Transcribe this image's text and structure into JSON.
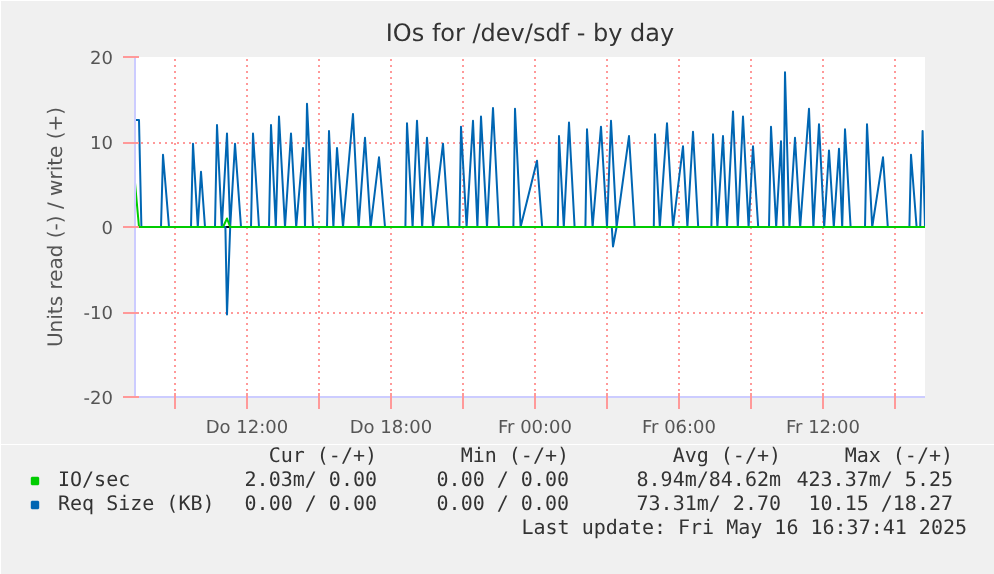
{
  "chart_data": {
    "type": "line",
    "title": "IOs for /dev/sdf - by day",
    "ylabel": "Units read (-) / write (+)",
    "xlim": [
      "2025-05-15T07:20",
      "2025-05-16T16:15"
    ],
    "ylim": [
      -20,
      20
    ],
    "xticks": [
      {
        "value": "2025-05-15T09:00",
        "label": null
      },
      {
        "value": "2025-05-15T12:00",
        "label": "Do 12:00"
      },
      {
        "value": "2025-05-15T15:00",
        "label": null
      },
      {
        "value": "2025-05-15T18:00",
        "label": "Do 18:00"
      },
      {
        "value": "2025-05-15T21:00",
        "label": null
      },
      {
        "value": "2025-05-16T00:00",
        "label": "Fr 00:00"
      },
      {
        "value": "2025-05-16T03:00",
        "label": null
      },
      {
        "value": "2025-05-16T06:00",
        "label": "Fr 06:00"
      },
      {
        "value": "2025-05-16T09:00",
        "label": null
      },
      {
        "value": "2025-05-16T12:00",
        "label": "Fr 12:00"
      },
      {
        "value": "2025-05-16T15:00",
        "label": null
      }
    ],
    "yticks": [
      -20,
      -10,
      0,
      10,
      20
    ],
    "grid": true,
    "legend": "bottom",
    "ref_lines": [
      {
        "axis": "y",
        "value": 0,
        "label": null,
        "color": "#000000"
      }
    ],
    "series": [
      {
        "name": "Req Size (KB)",
        "color": "#0066b3",
        "x": [
          "2025-05-15T07:20",
          "2025-05-15T07:30",
          "2025-05-15T07:36",
          "2025-05-15T08:25",
          "2025-05-15T08:30",
          "2025-05-15T08:45",
          "2025-05-15T09:40",
          "2025-05-15T09:45",
          "2025-05-15T09:57",
          "2025-05-15T10:05",
          "2025-05-15T10:15",
          "2025-05-15T10:40",
          "2025-05-15T10:45",
          "2025-05-15T10:57",
          "2025-05-15T11:10",
          "2025-05-15T11:18",
          "2025-05-15T11:30",
          "2025-05-15T11:45",
          "2025-05-15T12:10",
          "2025-05-15T12:15",
          "2025-05-15T12:30",
          "2025-05-15T12:55",
          "2025-05-15T13:00",
          "2025-05-15T13:12",
          "2025-05-15T13:20",
          "2025-05-15T13:35",
          "2025-05-15T13:50",
          "2025-05-15T14:03",
          "2025-05-15T14:20",
          "2025-05-15T14:25",
          "2025-05-15T14:30",
          "2025-05-15T14:45",
          "2025-05-15T15:20",
          "2025-05-15T15:25",
          "2025-05-15T15:36",
          "2025-05-15T15:45",
          "2025-05-15T16:00",
          "2025-05-15T16:25",
          "2025-05-15T16:39",
          "2025-05-15T16:55",
          "2025-05-15T17:09",
          "2025-05-15T17:30",
          "2025-05-15T17:45",
          "2025-05-15T18:36",
          "2025-05-15T18:40",
          "2025-05-15T18:54",
          "2025-05-15T19:05",
          "2025-05-15T19:18",
          "2025-05-15T19:30",
          "2025-05-15T19:45",
          "2025-05-15T20:10",
          "2025-05-15T20:24",
          "2025-05-15T20:51",
          "2025-05-15T20:55",
          "2025-05-15T21:09",
          "2025-05-15T21:25",
          "2025-05-15T21:36",
          "2025-05-15T21:45",
          "2025-05-15T22:00",
          "2025-05-15T22:15",
          "2025-05-15T22:30",
          "2025-05-15T23:06",
          "2025-05-15T23:10",
          "2025-05-15T23:24",
          "2025-05-16T00:05",
          "2025-05-16T00:18",
          "2025-05-16T00:57",
          "2025-05-16T01:00",
          "2025-05-16T01:12",
          "2025-05-16T01:25",
          "2025-05-16T01:39",
          "2025-05-16T02:06",
          "2025-05-16T02:10",
          "2025-05-16T02:24",
          "2025-05-16T02:45",
          "2025-05-16T03:00",
          "2025-05-16T03:10",
          "2025-05-16T03:24",
          "2025-05-16T03:55",
          "2025-05-16T04:09",
          "2025-05-16T04:57",
          "2025-05-16T05:00",
          "2025-05-16T05:12",
          "2025-05-16T05:30",
          "2025-05-16T05:45",
          "2025-05-16T06:10",
          "2025-05-16T06:21",
          "2025-05-16T06:35",
          "2025-05-16T06:48",
          "2025-05-16T07:21",
          "2025-05-16T07:25",
          "2025-05-16T07:36",
          "2025-05-16T07:50",
          "2025-05-16T08:00",
          "2025-05-16T08:15",
          "2025-05-16T08:27",
          "2025-05-16T08:40",
          "2025-05-16T08:54",
          "2025-05-16T09:05",
          "2025-05-16T09:18",
          "2025-05-16T09:45",
          "2025-05-16T09:50",
          "2025-05-16T10:03",
          "2025-05-16T10:15",
          "2025-05-16T10:21",
          "2025-05-16T10:25",
          "2025-05-16T10:36",
          "2025-05-16T10:50",
          "2025-05-16T11:03",
          "2025-05-16T11:25",
          "2025-05-16T11:36",
          "2025-05-16T11:50",
          "2025-05-16T12:03",
          "2025-05-16T12:15",
          "2025-05-16T12:27",
          "2025-05-16T12:40",
          "2025-05-16T12:48",
          "2025-05-16T12:55",
          "2025-05-16T13:09",
          "2025-05-16T13:45",
          "2025-05-16T13:50",
          "2025-05-16T14:03",
          "2025-05-16T14:30",
          "2025-05-16T14:42",
          "2025-05-16T15:36",
          "2025-05-16T15:40",
          "2025-05-16T15:54",
          "2025-05-16T16:03",
          "2025-05-16T16:09",
          "2025-05-16T16:15"
        ],
        "values": [
          12.6,
          12.6,
          0,
          0,
          8.5,
          0,
          0,
          9.8,
          0,
          6.5,
          0,
          0,
          12,
          0,
          11,
          0,
          9.8,
          0,
          0,
          11,
          0,
          0,
          12,
          0,
          13,
          0,
          11,
          0,
          9.3,
          0,
          14.5,
          0,
          0,
          11.3,
          0,
          9.3,
          0,
          13.3,
          0,
          10.5,
          0,
          8.2,
          0,
          0,
          12.2,
          0,
          12.5,
          0,
          10.5,
          0,
          9.8,
          0,
          0,
          11.8,
          0,
          12.5,
          0,
          13,
          0,
          14,
          0,
          0,
          13.9,
          0,
          7.8,
          0,
          0,
          10.7,
          0,
          12.3,
          0,
          0,
          11.5,
          0,
          11.8,
          0,
          12.5,
          0,
          10.7,
          0,
          0,
          10.9,
          0,
          12.2,
          0,
          9.5,
          0,
          11.2,
          0,
          0,
          10.9,
          0,
          10.7,
          0,
          13.6,
          0,
          13,
          0,
          9.5,
          0,
          0,
          11.8,
          0,
          10.1,
          0,
          18.2,
          0,
          10.5,
          0,
          13.9,
          0,
          12.1,
          0,
          9,
          0,
          9.2,
          0,
          11.5,
          0,
          0,
          12.1,
          0,
          8.2,
          0,
          0,
          8.5,
          0,
          0,
          11.3,
          0
        ]
      },
      {
        "color": "#0066b3",
        "x": [
          "2025-05-15T07:20",
          "2025-05-15T11:06",
          "2025-05-15T11:10",
          "2025-05-15T11:18",
          "2025-05-16T03:12",
          "2025-05-16T03:15",
          "2025-05-16T03:24",
          "2025-05-16T16:15"
        ],
        "values": [
          0,
          0,
          -10.3,
          0,
          0,
          -2.3,
          0,
          0
        ]
      },
      {
        "name": "IO/sec",
        "color": "#00cc00",
        "x": [
          "2025-05-15T07:20",
          "2025-05-15T07:30",
          "2025-05-15T11:00",
          "2025-05-15T11:10",
          "2025-05-15T11:18",
          "2025-05-16T16:15"
        ],
        "values": [
          5.2,
          0,
          0,
          1,
          0,
          0
        ]
      }
    ],
    "annotations": [
      "Cur (-/+)",
      "Min (-/+)",
      "Avg (-/+)",
      "Max (-/+)",
      "2.03m/ 0.00",
      "0.00 / 0.00",
      "8.94m/84.62m",
      "423.37m/ 5.25",
      "0.00 / 0.00",
      "0.00 / 0.00",
      "73.31m/ 2.70",
      "10.15 /18.27",
      "Last update: Fri May 16 16:37:41 2025"
    ]
  }
}
